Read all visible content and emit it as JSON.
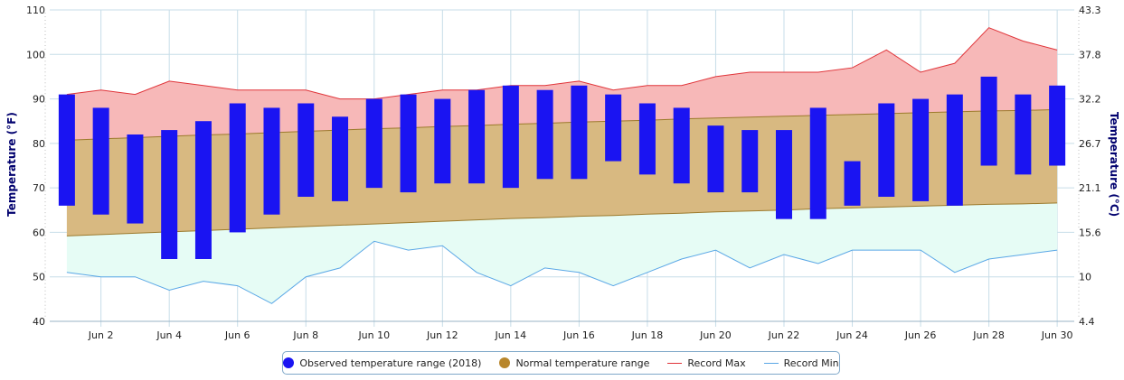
{
  "chart_data": {
    "type": "area",
    "title": "",
    "xlabel": "",
    "ylabel": "Temperature (°F)",
    "ylabel_right": "Temperature (°C)",
    "ylim": [
      40,
      110
    ],
    "y_ticks": [
      40,
      50,
      60,
      70,
      80,
      90,
      100,
      110
    ],
    "y_ticks_right": [
      "4.4",
      "10",
      "15.6",
      "21.1",
      "26.7",
      "32.2",
      "37.8",
      "43.3"
    ],
    "x_tick_labels": [
      "Jun 2",
      "Jun 4",
      "Jun 6",
      "Jun 8",
      "Jun 10",
      "Jun 12",
      "Jun 14",
      "Jun 16",
      "Jun 18",
      "Jun 20",
      "Jun 22",
      "Jun 24",
      "Jun 26",
      "Jun 28",
      "Jun 30"
    ],
    "days": [
      1,
      2,
      3,
      4,
      5,
      6,
      7,
      8,
      9,
      10,
      11,
      12,
      13,
      14,
      15,
      16,
      17,
      18,
      19,
      20,
      21,
      22,
      23,
      24,
      25,
      26,
      27,
      28,
      29,
      30
    ],
    "grid": true,
    "legend_position": "bottom-center",
    "colors": {
      "observed": "#1a14f2",
      "normal_fill": "#d8b981",
      "normal_legend": "#b8862b",
      "normal_line": "#9c7a2c",
      "record_max_fill": "#f7b8b8",
      "record_max_line": "#e0353a",
      "record_min_fill": "#e6fcf5",
      "record_min_line": "#5aa7e6"
    },
    "series": [
      {
        "name": "Observed temperature range (2018)",
        "low": [
          66,
          64,
          62,
          54,
          54,
          60,
          64,
          68,
          67,
          70,
          69,
          71,
          71,
          70,
          72,
          72,
          76,
          73,
          71,
          69,
          69,
          63,
          63,
          66,
          68,
          67,
          66,
          75,
          73,
          75
        ],
        "high": [
          91,
          88,
          82,
          83,
          85,
          89,
          88,
          89,
          86,
          90,
          91,
          90,
          92,
          93,
          92,
          93,
          91,
          89,
          88,
          84,
          83,
          83,
          88,
          76,
          89,
          90,
          91,
          95,
          91,
          93
        ]
      },
      {
        "name": "Normal temperature range",
        "low": [
          59.2,
          59.5,
          59.8,
          60.1,
          60.4,
          60.7,
          61.0,
          61.3,
          61.6,
          61.9,
          62.2,
          62.5,
          62.8,
          63.1,
          63.3,
          63.6,
          63.8,
          64.1,
          64.3,
          64.6,
          64.8,
          65.0,
          65.3,
          65.5,
          65.7,
          65.9,
          66.1,
          66.3,
          66.4,
          66.6
        ],
        "high": [
          80.7,
          81.0,
          81.3,
          81.6,
          81.9,
          82.1,
          82.4,
          82.7,
          83.0,
          83.3,
          83.5,
          83.8,
          84.0,
          84.3,
          84.5,
          84.8,
          85.0,
          85.2,
          85.5,
          85.7,
          85.9,
          86.1,
          86.3,
          86.5,
          86.7,
          86.9,
          87.1,
          87.3,
          87.4,
          87.6
        ]
      },
      {
        "name": "Record Max",
        "values": [
          91,
          92,
          91,
          94,
          93,
          92,
          92,
          92,
          90,
          90,
          91,
          92,
          92,
          93,
          93,
          94,
          92,
          93,
          93,
          95,
          96,
          96,
          96,
          97,
          101,
          96,
          98,
          106,
          103,
          101
        ]
      },
      {
        "name": "Record Min",
        "values": [
          51,
          50,
          50,
          47,
          49,
          48,
          44,
          50,
          52,
          58,
          56,
          57,
          51,
          48,
          52,
          51,
          48,
          51,
          54,
          56,
          52,
          55,
          53,
          56,
          56,
          56,
          51,
          54,
          55,
          56
        ]
      }
    ]
  },
  "legend": {
    "observed_label": "Observed temperature range (2018)",
    "normal_label": "Normal temperature range",
    "record_max_label": "Record Max",
    "record_min_label": "Record Min"
  }
}
